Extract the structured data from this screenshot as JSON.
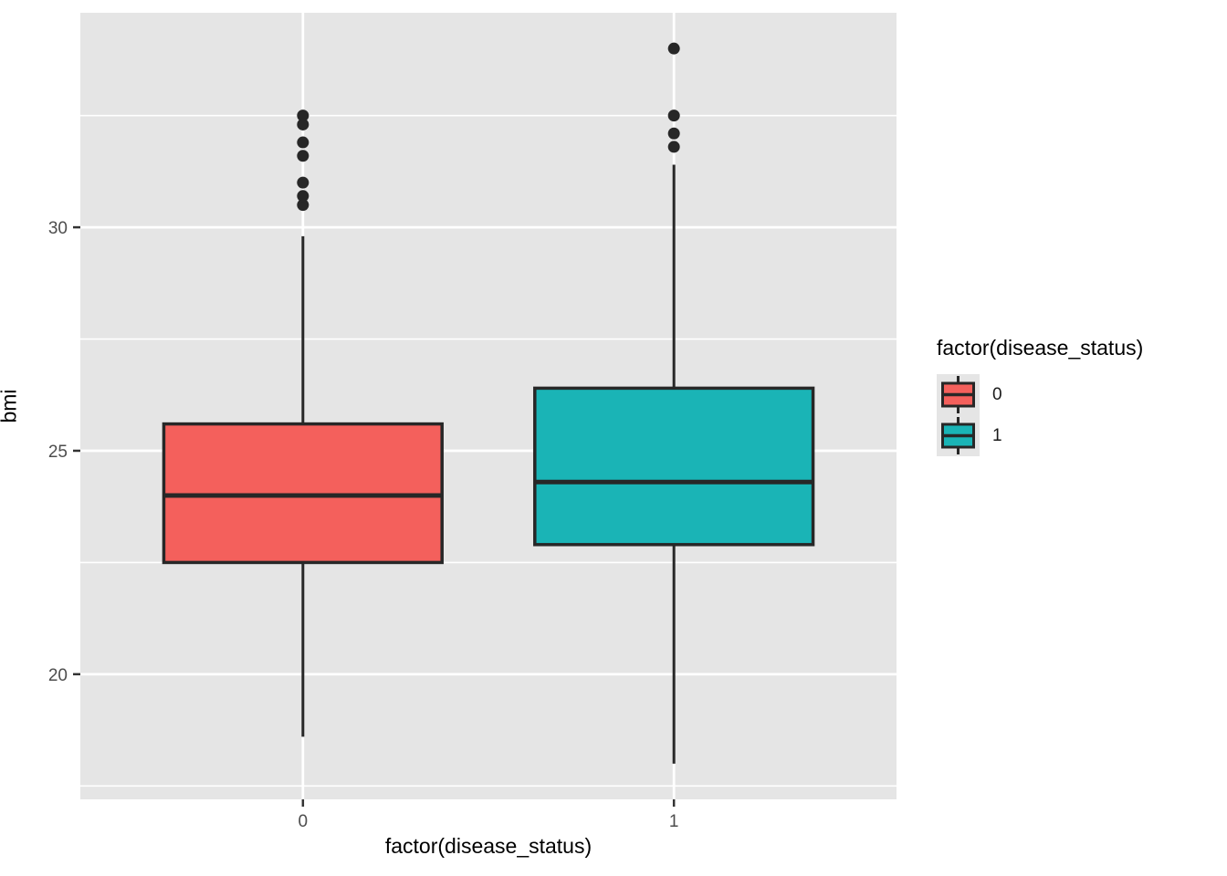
{
  "chart_data": {
    "type": "boxplot",
    "title": "",
    "xlabel": "factor(disease_status)",
    "ylabel": "bmi",
    "categories": [
      "0",
      "1"
    ],
    "series": [
      {
        "name": "0",
        "fill": "#F4605C",
        "whisker_low": 18.6,
        "q1": 22.5,
        "median": 24.0,
        "q3": 25.6,
        "whisker_high": 29.8,
        "outliers": [
          30.5,
          30.7,
          31.0,
          31.6,
          31.9,
          32.3,
          32.5
        ]
      },
      {
        "name": "1",
        "fill": "#1AB4B6",
        "whisker_low": 18.0,
        "q1": 22.9,
        "median": 24.3,
        "q3": 26.4,
        "whisker_high": 31.4,
        "outliers": [
          31.8,
          32.1,
          32.5,
          34.0
        ]
      }
    ],
    "ylim": [
      17.2,
      34.8
    ],
    "yticks": [
      20,
      25,
      30
    ],
    "yticks_minor": [
      17.5,
      22.5,
      27.5,
      32.5
    ],
    "grid": true,
    "legend": {
      "title": "factor(disease_status)",
      "position": "right",
      "entries": [
        {
          "label": "0",
          "color": "#F4605C"
        },
        {
          "label": "1",
          "color": "#1AB4B6"
        }
      ]
    },
    "style": {
      "panel_bg": "#E5E5E5",
      "grid_color": "#FFFFFF",
      "box_stroke": "#272727",
      "tick_mark_color": "#333333",
      "tick_label_color": "#4D4D4D",
      "title_color": "#000000"
    }
  }
}
